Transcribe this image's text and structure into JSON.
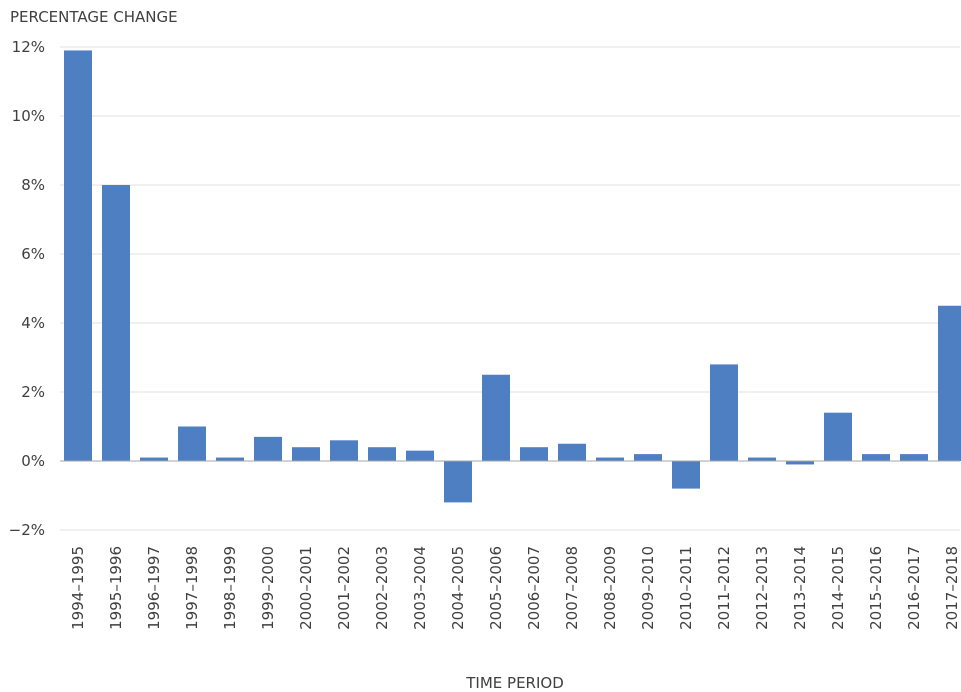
{
  "chart_data": {
    "type": "bar",
    "ylabel": "PERCENTAGE CHANGE",
    "xlabel": "TIME PERIOD",
    "categories": [
      "1994–1995",
      "1995–1996",
      "1996–1997",
      "1997–1998",
      "1998–1999",
      "1999–2000",
      "2000–2001",
      "2001–2002",
      "2002–2003",
      "2003–2004",
      "2004–2005",
      "2005–2006",
      "2006–2007",
      "2007–2008",
      "2008–2009",
      "2009–2010",
      "2010–2011",
      "2011–2012",
      "2012–2013",
      "2013–2014",
      "2014–2015",
      "2015–2016",
      "2016–2017",
      "2017–2018"
    ],
    "values": [
      11.9,
      8.0,
      0.1,
      1.0,
      0.1,
      0.7,
      0.4,
      0.6,
      0.4,
      0.3,
      -1.2,
      2.5,
      0.4,
      0.5,
      0.1,
      0.2,
      -0.8,
      2.8,
      0.1,
      -0.1,
      1.4,
      0.2,
      0.2,
      4.5
    ],
    "yticks": [
      -2,
      0,
      2,
      4,
      6,
      8,
      10,
      12
    ],
    "ytick_labels": [
      "−2%",
      "0%",
      "2%",
      "4%",
      "6%",
      "8%",
      "10%",
      "12%"
    ],
    "ylim": [
      -2,
      12
    ],
    "grid": true,
    "bar_color": "#4f7fc3",
    "grid_color": "#e0e0e0",
    "zero_line_color": "#a6a6a6"
  }
}
